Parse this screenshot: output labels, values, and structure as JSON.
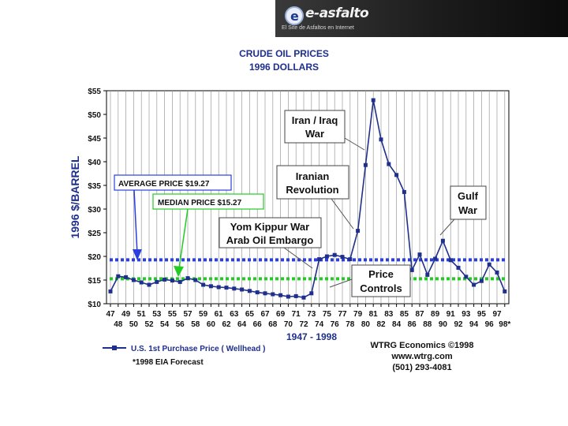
{
  "logo": {
    "icon": "e-globe-icon",
    "wordmark": "e-asfalto",
    "tagline": "El Site de Asfaltos en Internet"
  },
  "chart_data": {
    "type": "line",
    "title": "CRUDE OIL PRICES",
    "subtitle": "1996 DOLLARS",
    "ylabel": "1996 $/BARREL",
    "xlabel": "1947 - 1998",
    "ylim": [
      10,
      55
    ],
    "yticks": [
      "$10",
      "$15",
      "$20",
      "$25",
      "$30",
      "$35",
      "$40",
      "$45",
      "$50",
      "$55"
    ],
    "x_labels_top": [
      "47",
      "49",
      "51",
      "53",
      "55",
      "57",
      "59",
      "61",
      "63",
      "65",
      "67",
      "69",
      "71",
      "73",
      "75",
      "77",
      "79",
      "81",
      "83",
      "85",
      "87",
      "89",
      "91",
      "93",
      "95",
      "97"
    ],
    "x_labels_bottom": [
      "48",
      "50",
      "52",
      "54",
      "56",
      "58",
      "60",
      "62",
      "64",
      "66",
      "68",
      "70",
      "72",
      "74",
      "76",
      "78",
      "80",
      "82",
      "84",
      "86",
      "88",
      "90",
      "92",
      "94",
      "96",
      "98*"
    ],
    "grid": "vertical",
    "series": [
      {
        "name": "U.S. 1st Purchase Price ( Wellhead )",
        "color": "#1f2f8c",
        "x": [
          1947,
          1948,
          1949,
          1950,
          1951,
          1952,
          1953,
          1954,
          1955,
          1956,
          1957,
          1958,
          1959,
          1960,
          1961,
          1962,
          1963,
          1964,
          1965,
          1966,
          1967,
          1968,
          1969,
          1970,
          1971,
          1972,
          1973,
          1974,
          1975,
          1976,
          1977,
          1978,
          1979,
          1980,
          1981,
          1982,
          1983,
          1984,
          1985,
          1986,
          1987,
          1988,
          1989,
          1990,
          1991,
          1992,
          1993,
          1994,
          1995,
          1996,
          1997,
          1998
        ],
        "values": [
          12.6,
          15.8,
          15.6,
          15.0,
          14.5,
          14.0,
          14.6,
          15.1,
          14.9,
          14.6,
          15.4,
          15.0,
          14.0,
          13.7,
          13.5,
          13.4,
          13.2,
          13.0,
          12.7,
          12.4,
          12.2,
          12.0,
          11.8,
          11.5,
          11.6,
          11.3,
          12.2,
          19.4,
          20.0,
          20.3,
          19.9,
          19.4,
          25.4,
          39.3,
          53.0,
          44.7,
          39.5,
          37.2,
          33.6,
          17.1,
          20.4,
          16.1,
          19.5,
          23.3,
          19.2,
          17.6,
          15.7,
          14.0,
          14.8,
          18.3,
          16.6,
          12.6
        ]
      }
    ],
    "reference_lines": [
      {
        "label": "AVERAGE  PRICE  $19.27",
        "value": 19.27,
        "color": "#2b3fe0"
      },
      {
        "label": "MEDIAN  PRICE  $15.27",
        "value": 15.27,
        "color": "#22cc22"
      }
    ],
    "annotations": [
      {
        "lines": [
          "Iran / Iraq",
          "War"
        ]
      },
      {
        "lines": [
          "Iranian",
          "Revolution"
        ]
      },
      {
        "lines": [
          "Gulf",
          "War"
        ]
      },
      {
        "lines": [
          "Yom Kippur War",
          "Arab Oil Embargo"
        ]
      },
      {
        "lines": [
          "Price",
          "Controls"
        ]
      }
    ],
    "footnote": "*1998 EIA Forecast",
    "credit": [
      "WTRG Economics  ©1998",
      "www.wtrg.com",
      "(501) 293-4081"
    ]
  }
}
